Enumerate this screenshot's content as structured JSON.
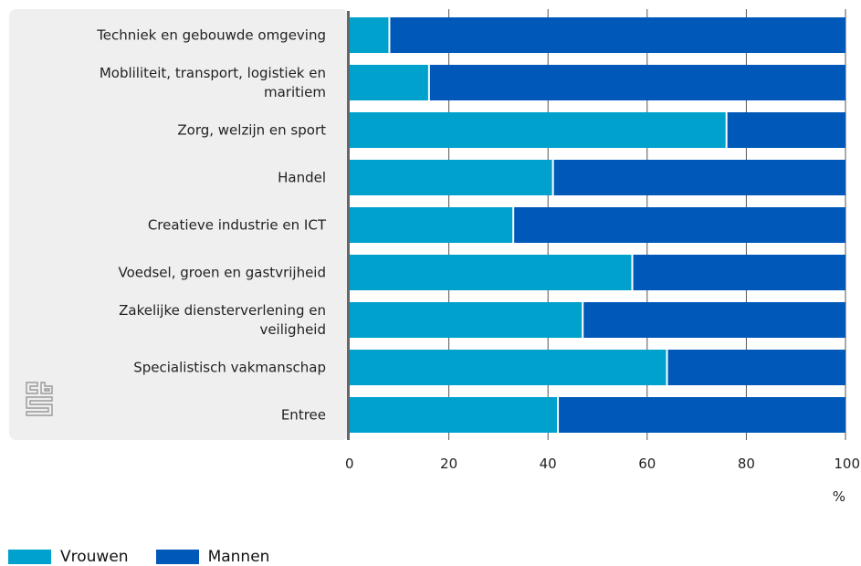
{
  "chart_data": {
    "type": "bar",
    "orientation": "horizontal",
    "stacked": true,
    "categories": [
      [
        "Techniek en gebouwde omgeving"
      ],
      [
        "Mobliliteit, transport, logistiek en",
        "maritiem"
      ],
      [
        "Zorg, welzijn en sport"
      ],
      [
        "Handel"
      ],
      [
        "Creatieve industrie en ICT"
      ],
      [
        "Voedsel, groen en gastvrijheid"
      ],
      [
        "Zakelijke diensterverlening en",
        "veiligheid"
      ],
      [
        "Specialistisch vakmanschap"
      ],
      [
        "Entree"
      ]
    ],
    "series": [
      {
        "name": "Vrouwen",
        "color": "#00a1cd",
        "values": [
          8,
          16,
          76,
          41,
          33,
          57,
          47,
          64,
          42
        ]
      },
      {
        "name": "Mannen",
        "color": "#0058b8",
        "values": [
          92,
          84,
          24,
          59,
          67,
          43,
          53,
          36,
          58
        ]
      }
    ],
    "xlim": [
      0,
      100
    ],
    "xticks": [
      "0",
      "20",
      "40",
      "60",
      "80",
      "100"
    ],
    "xunit": "%",
    "legend_position": "bottom-left",
    "colors": {
      "panel": "#efefef",
      "axis": "#666666",
      "grid": "#555555"
    }
  },
  "logo": {
    "icon": "cbs-logo-icon"
  }
}
